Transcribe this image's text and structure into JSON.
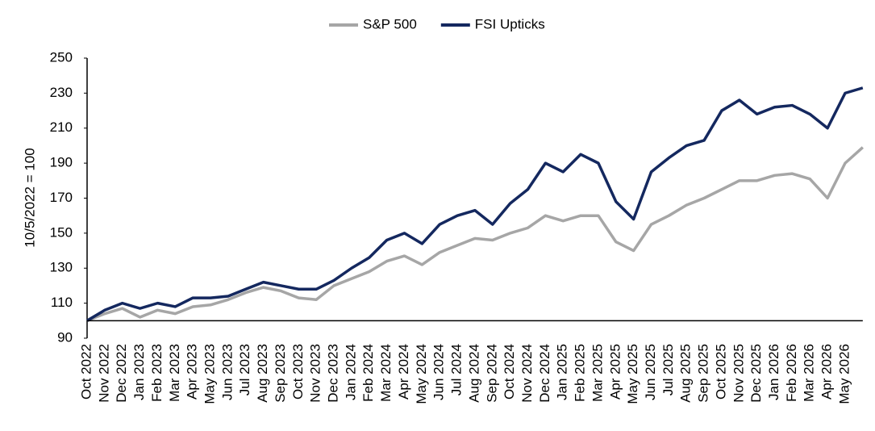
{
  "chart_data": {
    "type": "line",
    "y_label": "10/5/2022 = 100",
    "categories": [
      "Oct 2022",
      "Nov 2022",
      "Dec 2022",
      "Jan 2023",
      "Feb 2023",
      "Mar 2023",
      "Apr 2023",
      "May 2023",
      "Jun 2023",
      "Jul 2023",
      "Aug 2023",
      "Sep 2023",
      "Oct 2023",
      "Nov 2023",
      "Dec 2023",
      "Jan 2024",
      "Feb 2024",
      "Mar 2024",
      "Apr 2024",
      "May 2024",
      "Jun 2024",
      "Jul 2024",
      "Aug 2024",
      "Sep 2024",
      "Oct 2024",
      "Nov 2024",
      "Dec 2024",
      "Jan 2025",
      "Feb 2025",
      "Mar 2025",
      "Apr 2025",
      "May 2025",
      "Jun 2025",
      "Jul 2025",
      "Aug 2025",
      "Sep 2025",
      "Oct 2025",
      "Nov 2025",
      "Dec 2025",
      "Jan 2026",
      "Feb 2026",
      "Mar 2026",
      "Apr 2026",
      "May 2026",
      null
    ],
    "series": [
      {
        "name": "S&P 500",
        "color": "#a6a6a6",
        "values": [
          100,
          104,
          107,
          102,
          106,
          104,
          108,
          109,
          112,
          116,
          119,
          117,
          113,
          112,
          120,
          124,
          128,
          134,
          137,
          132,
          139,
          143,
          147,
          146,
          150,
          153,
          160,
          157,
          160,
          160,
          145,
          140,
          155,
          160,
          166,
          170,
          175,
          180,
          180,
          183,
          184,
          181,
          170,
          190,
          199
        ]
      },
      {
        "name": "FSI Upticks",
        "color": "#14285f",
        "values": [
          100,
          106,
          110,
          107,
          110,
          108,
          113,
          113,
          114,
          118,
          122,
          120,
          118,
          118,
          123,
          130,
          136,
          146,
          150,
          144,
          155,
          160,
          163,
          155,
          167,
          175,
          190,
          185,
          195,
          190,
          168,
          158,
          185,
          193,
          200,
          203,
          220,
          226,
          218,
          222,
          223,
          218,
          210,
          230,
          233
        ]
      }
    ],
    "ylim": [
      90,
      250
    ],
    "yticks": [
      90,
      110,
      130,
      150,
      170,
      190,
      210,
      230,
      250
    ],
    "baseline": 100,
    "legend": "top"
  }
}
